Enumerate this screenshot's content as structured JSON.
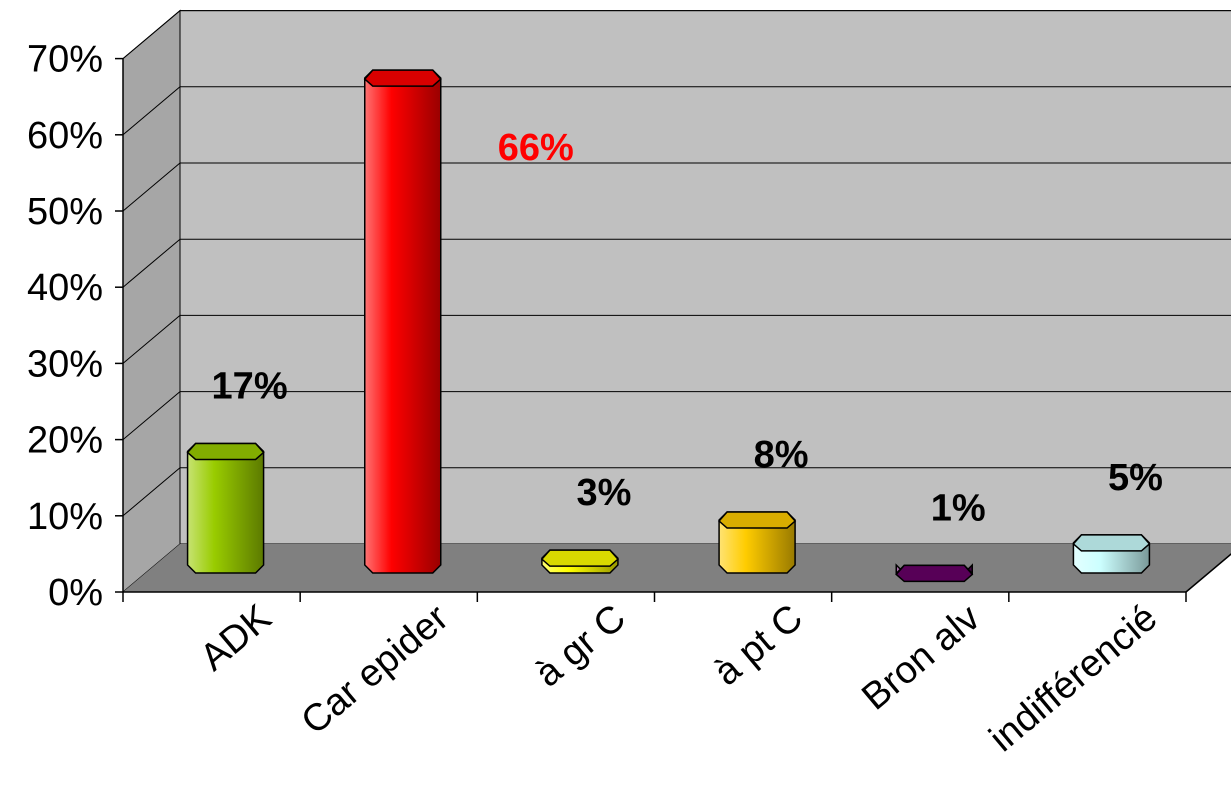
{
  "chart_data": {
    "type": "bar",
    "title": "",
    "xlabel": "",
    "ylabel": "",
    "categories": [
      "ADK",
      "Car epider",
      "à gr C",
      "à pt C",
      "Bron alv",
      "indifférencié"
    ],
    "values": [
      17,
      66,
      3,
      8,
      1,
      5
    ],
    "data_labels": [
      "17%",
      "66%",
      "3%",
      "8%",
      "1%",
      "5%"
    ],
    "bar_colors": [
      "#99cc00",
      "#ff0000",
      "#ffff00",
      "#ffcc00",
      "#660066",
      "#ccffff"
    ],
    "label_colors": [
      "#000000",
      "#ff0000",
      "#000000",
      "#000000",
      "#000000",
      "#000000"
    ],
    "y_ticks": [
      "0%",
      "10%",
      "20%",
      "30%",
      "40%",
      "50%",
      "60%",
      "70%"
    ],
    "ylim": [
      0,
      70
    ],
    "grid": true,
    "style": "3d-cylinder",
    "legend": "none",
    "wall_color": "#c0c0c0",
    "floor_color": "#808080"
  }
}
